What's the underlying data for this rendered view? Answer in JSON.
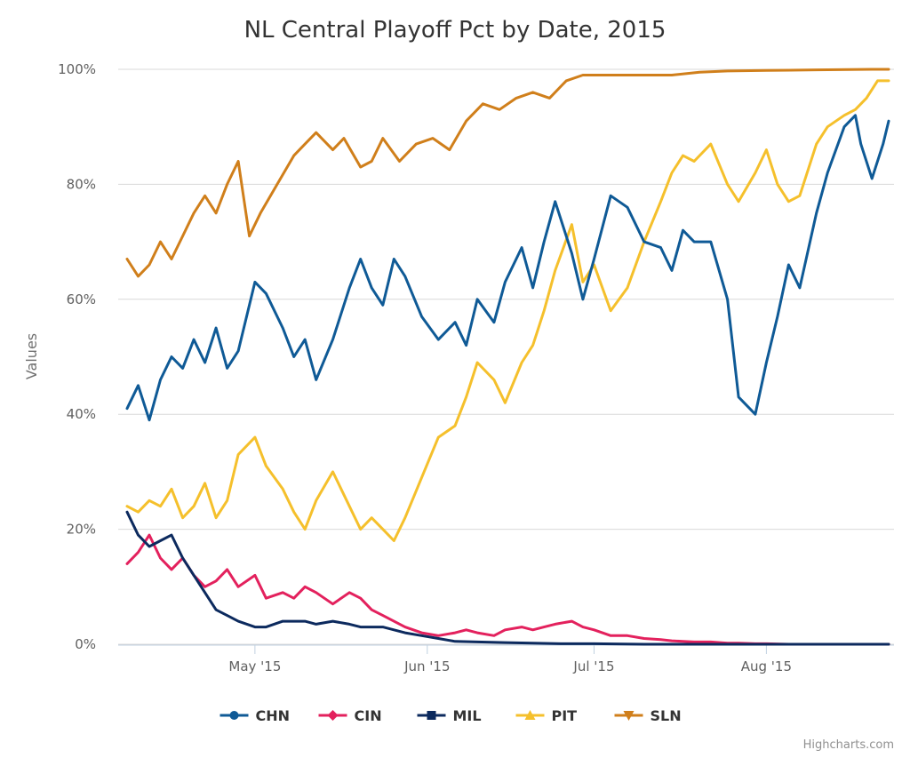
{
  "chart_data": {
    "type": "line",
    "title": "NL Central Playoff Pct by Date, 2015",
    "xlabel": "",
    "ylabel": "Values",
    "ylim": [
      0,
      100
    ],
    "yticks": [
      "0%",
      "20%",
      "40%",
      "60%",
      "80%",
      "100%"
    ],
    "x_range": [
      "2015-04-08",
      "2015-08-23"
    ],
    "xticks": [
      {
        "date": "2015-05-01",
        "label": "May '15"
      },
      {
        "date": "2015-06-01",
        "label": "Jun '15"
      },
      {
        "date": "2015-07-01",
        "label": "Jul '15"
      },
      {
        "date": "2015-08-01",
        "label": "Aug '15"
      }
    ],
    "grid": true,
    "legend_position": "bottom",
    "credits": "Highcharts.com",
    "series": [
      {
        "name": "CHN",
        "color": "#0f5a96",
        "marker": "circle",
        "points": [
          [
            "2015-04-08",
            41
          ],
          [
            "2015-04-10",
            45
          ],
          [
            "2015-04-12",
            39
          ],
          [
            "2015-04-14",
            46
          ],
          [
            "2015-04-16",
            50
          ],
          [
            "2015-04-18",
            48
          ],
          [
            "2015-04-20",
            53
          ],
          [
            "2015-04-22",
            49
          ],
          [
            "2015-04-24",
            55
          ],
          [
            "2015-04-26",
            48
          ],
          [
            "2015-04-28",
            51
          ],
          [
            "2015-05-01",
            63
          ],
          [
            "2015-05-03",
            61
          ],
          [
            "2015-05-06",
            55
          ],
          [
            "2015-05-08",
            50
          ],
          [
            "2015-05-10",
            53
          ],
          [
            "2015-05-12",
            46
          ],
          [
            "2015-05-15",
            53
          ],
          [
            "2015-05-18",
            62
          ],
          [
            "2015-05-20",
            67
          ],
          [
            "2015-05-22",
            62
          ],
          [
            "2015-05-24",
            59
          ],
          [
            "2015-05-26",
            67
          ],
          [
            "2015-05-28",
            64
          ],
          [
            "2015-05-31",
            57
          ],
          [
            "2015-06-03",
            53
          ],
          [
            "2015-06-06",
            56
          ],
          [
            "2015-06-08",
            52
          ],
          [
            "2015-06-10",
            60
          ],
          [
            "2015-06-13",
            56
          ],
          [
            "2015-06-15",
            63
          ],
          [
            "2015-06-18",
            69
          ],
          [
            "2015-06-20",
            62
          ],
          [
            "2015-06-22",
            70
          ],
          [
            "2015-06-24",
            77
          ],
          [
            "2015-06-27",
            68
          ],
          [
            "2015-06-29",
            60
          ],
          [
            "2015-07-01",
            67
          ],
          [
            "2015-07-04",
            78
          ],
          [
            "2015-07-07",
            76
          ],
          [
            "2015-07-10",
            70
          ],
          [
            "2015-07-13",
            69
          ],
          [
            "2015-07-15",
            65
          ],
          [
            "2015-07-17",
            72
          ],
          [
            "2015-07-19",
            70
          ],
          [
            "2015-07-22",
            70
          ],
          [
            "2015-07-25",
            60
          ],
          [
            "2015-07-27",
            43
          ],
          [
            "2015-07-30",
            40
          ],
          [
            "2015-08-01",
            49
          ],
          [
            "2015-08-03",
            57
          ],
          [
            "2015-08-05",
            66
          ],
          [
            "2015-08-07",
            62
          ],
          [
            "2015-08-10",
            75
          ],
          [
            "2015-08-12",
            82
          ],
          [
            "2015-08-15",
            90
          ],
          [
            "2015-08-17",
            92
          ],
          [
            "2015-08-18",
            87
          ],
          [
            "2015-08-20",
            81
          ],
          [
            "2015-08-22",
            87
          ],
          [
            "2015-08-23",
            91
          ]
        ]
      },
      {
        "name": "CIN",
        "color": "#e3215d",
        "marker": "diamond",
        "points": [
          [
            "2015-04-08",
            14
          ],
          [
            "2015-04-10",
            16
          ],
          [
            "2015-04-12",
            19
          ],
          [
            "2015-04-14",
            15
          ],
          [
            "2015-04-16",
            13
          ],
          [
            "2015-04-18",
            15
          ],
          [
            "2015-04-20",
            12
          ],
          [
            "2015-04-22",
            10
          ],
          [
            "2015-04-24",
            11
          ],
          [
            "2015-04-26",
            13
          ],
          [
            "2015-04-28",
            10
          ],
          [
            "2015-05-01",
            12
          ],
          [
            "2015-05-03",
            8
          ],
          [
            "2015-05-06",
            9
          ],
          [
            "2015-05-08",
            8
          ],
          [
            "2015-05-10",
            10
          ],
          [
            "2015-05-12",
            9
          ],
          [
            "2015-05-15",
            7
          ],
          [
            "2015-05-18",
            9
          ],
          [
            "2015-05-20",
            8
          ],
          [
            "2015-05-22",
            6
          ],
          [
            "2015-05-24",
            5
          ],
          [
            "2015-05-26",
            4
          ],
          [
            "2015-05-28",
            3
          ],
          [
            "2015-05-31",
            2
          ],
          [
            "2015-06-03",
            1.5
          ],
          [
            "2015-06-06",
            2
          ],
          [
            "2015-06-08",
            2.5
          ],
          [
            "2015-06-10",
            2
          ],
          [
            "2015-06-13",
            1.5
          ],
          [
            "2015-06-15",
            2.5
          ],
          [
            "2015-06-18",
            3
          ],
          [
            "2015-06-20",
            2.5
          ],
          [
            "2015-06-22",
            3
          ],
          [
            "2015-06-24",
            3.5
          ],
          [
            "2015-06-27",
            4
          ],
          [
            "2015-06-29",
            3
          ],
          [
            "2015-07-01",
            2.5
          ],
          [
            "2015-07-04",
            1.5
          ],
          [
            "2015-07-07",
            1.5
          ],
          [
            "2015-07-10",
            1
          ],
          [
            "2015-07-13",
            0.8
          ],
          [
            "2015-07-15",
            0.6
          ],
          [
            "2015-07-17",
            0.5
          ],
          [
            "2015-07-19",
            0.4
          ],
          [
            "2015-07-22",
            0.4
          ],
          [
            "2015-07-25",
            0.2
          ],
          [
            "2015-07-27",
            0.2
          ],
          [
            "2015-07-30",
            0.1
          ],
          [
            "2015-08-01",
            0.1
          ],
          [
            "2015-08-05",
            0
          ],
          [
            "2015-08-10",
            0
          ],
          [
            "2015-08-15",
            0
          ],
          [
            "2015-08-20",
            0
          ],
          [
            "2015-08-23",
            0
          ]
        ]
      },
      {
        "name": "MIL",
        "color": "#0c2a5e",
        "marker": "square",
        "points": [
          [
            "2015-04-08",
            23
          ],
          [
            "2015-04-10",
            19
          ],
          [
            "2015-04-12",
            17
          ],
          [
            "2015-04-14",
            18
          ],
          [
            "2015-04-16",
            19
          ],
          [
            "2015-04-18",
            15
          ],
          [
            "2015-04-20",
            12
          ],
          [
            "2015-04-22",
            9
          ],
          [
            "2015-04-24",
            6
          ],
          [
            "2015-04-26",
            5
          ],
          [
            "2015-04-28",
            4
          ],
          [
            "2015-05-01",
            3
          ],
          [
            "2015-05-03",
            3
          ],
          [
            "2015-05-06",
            4
          ],
          [
            "2015-05-08",
            4
          ],
          [
            "2015-05-10",
            4
          ],
          [
            "2015-05-12",
            3.5
          ],
          [
            "2015-05-15",
            4
          ],
          [
            "2015-05-18",
            3.5
          ],
          [
            "2015-05-20",
            3
          ],
          [
            "2015-05-22",
            3
          ],
          [
            "2015-05-24",
            3
          ],
          [
            "2015-05-26",
            2.5
          ],
          [
            "2015-05-28",
            2
          ],
          [
            "2015-05-31",
            1.5
          ],
          [
            "2015-06-03",
            1
          ],
          [
            "2015-06-06",
            0.5
          ],
          [
            "2015-06-10",
            0.4
          ],
          [
            "2015-06-15",
            0.3
          ],
          [
            "2015-06-20",
            0.2
          ],
          [
            "2015-06-25",
            0.1
          ],
          [
            "2015-07-01",
            0.1
          ],
          [
            "2015-07-10",
            0
          ],
          [
            "2015-07-20",
            0
          ],
          [
            "2015-08-01",
            0
          ],
          [
            "2015-08-10",
            0
          ],
          [
            "2015-08-20",
            0
          ],
          [
            "2015-08-23",
            0
          ]
        ]
      },
      {
        "name": "PIT",
        "color": "#f5c02c",
        "marker": "triangle",
        "points": [
          [
            "2015-04-08",
            24
          ],
          [
            "2015-04-10",
            23
          ],
          [
            "2015-04-12",
            25
          ],
          [
            "2015-04-14",
            24
          ],
          [
            "2015-04-16",
            27
          ],
          [
            "2015-04-18",
            22
          ],
          [
            "2015-04-20",
            24
          ],
          [
            "2015-04-22",
            28
          ],
          [
            "2015-04-24",
            22
          ],
          [
            "2015-04-26",
            25
          ],
          [
            "2015-04-28",
            33
          ],
          [
            "2015-05-01",
            36
          ],
          [
            "2015-05-03",
            31
          ],
          [
            "2015-05-06",
            27
          ],
          [
            "2015-05-08",
            23
          ],
          [
            "2015-05-10",
            20
          ],
          [
            "2015-05-12",
            25
          ],
          [
            "2015-05-15",
            30
          ],
          [
            "2015-05-18",
            24
          ],
          [
            "2015-05-20",
            20
          ],
          [
            "2015-05-22",
            22
          ],
          [
            "2015-05-24",
            20
          ],
          [
            "2015-05-26",
            18
          ],
          [
            "2015-05-28",
            22
          ],
          [
            "2015-05-31",
            29
          ],
          [
            "2015-06-03",
            36
          ],
          [
            "2015-06-06",
            38
          ],
          [
            "2015-06-08",
            43
          ],
          [
            "2015-06-10",
            49
          ],
          [
            "2015-06-13",
            46
          ],
          [
            "2015-06-15",
            42
          ],
          [
            "2015-06-18",
            49
          ],
          [
            "2015-06-20",
            52
          ],
          [
            "2015-06-22",
            58
          ],
          [
            "2015-06-24",
            65
          ],
          [
            "2015-06-27",
            73
          ],
          [
            "2015-06-29",
            63
          ],
          [
            "2015-07-01",
            66
          ],
          [
            "2015-07-04",
            58
          ],
          [
            "2015-07-07",
            62
          ],
          [
            "2015-07-10",
            70
          ],
          [
            "2015-07-13",
            77
          ],
          [
            "2015-07-15",
            82
          ],
          [
            "2015-07-17",
            85
          ],
          [
            "2015-07-19",
            84
          ],
          [
            "2015-07-22",
            87
          ],
          [
            "2015-07-25",
            80
          ],
          [
            "2015-07-27",
            77
          ],
          [
            "2015-07-30",
            82
          ],
          [
            "2015-08-01",
            86
          ],
          [
            "2015-08-03",
            80
          ],
          [
            "2015-08-05",
            77
          ],
          [
            "2015-08-07",
            78
          ],
          [
            "2015-08-10",
            87
          ],
          [
            "2015-08-12",
            90
          ],
          [
            "2015-08-15",
            92
          ],
          [
            "2015-08-17",
            93
          ],
          [
            "2015-08-19",
            95
          ],
          [
            "2015-08-21",
            98
          ],
          [
            "2015-08-23",
            98
          ]
        ]
      },
      {
        "name": "SLN",
        "color": "#d07f1b",
        "marker": "triangle-down",
        "points": [
          [
            "2015-04-08",
            67
          ],
          [
            "2015-04-10",
            64
          ],
          [
            "2015-04-12",
            66
          ],
          [
            "2015-04-14",
            70
          ],
          [
            "2015-04-16",
            67
          ],
          [
            "2015-04-18",
            71
          ],
          [
            "2015-04-20",
            75
          ],
          [
            "2015-04-22",
            78
          ],
          [
            "2015-04-24",
            75
          ],
          [
            "2015-04-26",
            80
          ],
          [
            "2015-04-28",
            84
          ],
          [
            "2015-04-30",
            71
          ],
          [
            "2015-05-02",
            75
          ],
          [
            "2015-05-05",
            80
          ],
          [
            "2015-05-08",
            85
          ],
          [
            "2015-05-10",
            87
          ],
          [
            "2015-05-12",
            89
          ],
          [
            "2015-05-15",
            86
          ],
          [
            "2015-05-17",
            88
          ],
          [
            "2015-05-20",
            83
          ],
          [
            "2015-05-22",
            84
          ],
          [
            "2015-05-24",
            88
          ],
          [
            "2015-05-27",
            84
          ],
          [
            "2015-05-30",
            87
          ],
          [
            "2015-06-02",
            88
          ],
          [
            "2015-06-05",
            86
          ],
          [
            "2015-06-08",
            91
          ],
          [
            "2015-06-11",
            94
          ],
          [
            "2015-06-14",
            93
          ],
          [
            "2015-06-17",
            95
          ],
          [
            "2015-06-20",
            96
          ],
          [
            "2015-06-23",
            95
          ],
          [
            "2015-06-26",
            98
          ],
          [
            "2015-06-29",
            99
          ],
          [
            "2015-07-02",
            99
          ],
          [
            "2015-07-06",
            99
          ],
          [
            "2015-07-10",
            99
          ],
          [
            "2015-07-15",
            99
          ],
          [
            "2015-07-20",
            99.5
          ],
          [
            "2015-07-25",
            99.7
          ],
          [
            "2015-08-01",
            99.8
          ],
          [
            "2015-08-10",
            99.9
          ],
          [
            "2015-08-20",
            100
          ],
          [
            "2015-08-23",
            100
          ]
        ]
      }
    ]
  }
}
